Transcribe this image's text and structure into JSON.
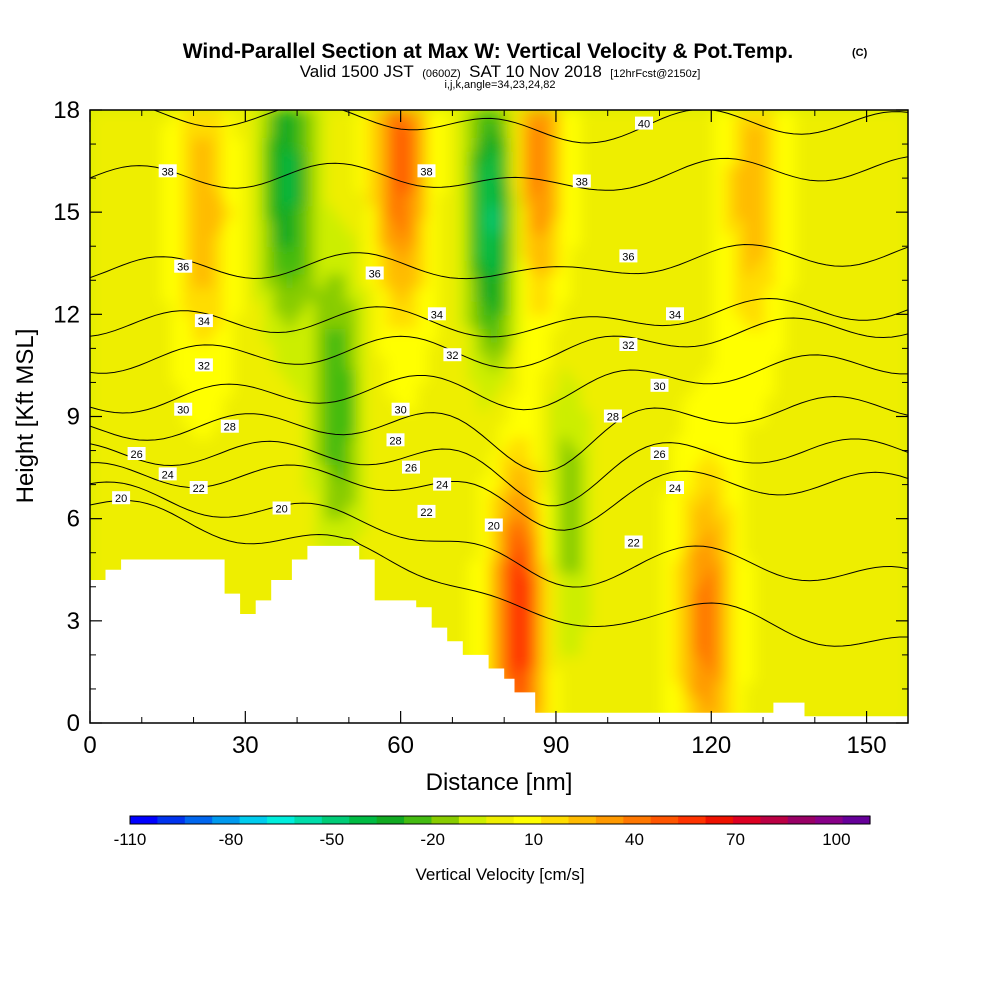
{
  "header": {
    "title": "Wind-Parallel Section at Max W: Vertical Velocity & Pot.Temp.",
    "copyright": "(C)",
    "valid_prefix": "Valid 1500 JST",
    "valid_utc": "(0600Z)",
    "valid_date": "SAT 10 Nov 2018",
    "forecast": "[12hrFcst@2150z]",
    "indices": "i,j,k,angle=34,23,24,82"
  },
  "chart_data": {
    "type": "heatmap",
    "title": "Wind-Parallel Section at Max W: Vertical Velocity & Pot.Temp.",
    "xlabel": "Distance [nm]",
    "ylabel": "Height [Kft MSL]",
    "xlim": [
      0,
      158
    ],
    "ylim": [
      0,
      18
    ],
    "x_ticks": [
      0,
      30,
      60,
      90,
      120,
      150
    ],
    "y_ticks": [
      0,
      3,
      6,
      9,
      12,
      15,
      18
    ],
    "x_tick_labels": [
      "0",
      "30",
      "60",
      "90",
      "120",
      "150"
    ],
    "y_tick_labels": [
      "0",
      "3",
      "6",
      "9",
      "12",
      "15",
      "18"
    ],
    "terrain_kft": [
      {
        "x": 0,
        "h": 4.2
      },
      {
        "x": 3,
        "h": 4.5
      },
      {
        "x": 6,
        "h": 4.8
      },
      {
        "x": 26,
        "h": 3.8
      },
      {
        "x": 29,
        "h": 3.2
      },
      {
        "x": 32,
        "h": 3.6
      },
      {
        "x": 35,
        "h": 4.2
      },
      {
        "x": 39,
        "h": 4.8
      },
      {
        "x": 42,
        "h": 5.2
      },
      {
        "x": 52,
        "h": 4.8
      },
      {
        "x": 55,
        "h": 3.6
      },
      {
        "x": 63,
        "h": 3.4
      },
      {
        "x": 66,
        "h": 2.8
      },
      {
        "x": 69,
        "h": 2.4
      },
      {
        "x": 72,
        "h": 2.0
      },
      {
        "x": 77,
        "h": 1.6
      },
      {
        "x": 80,
        "h": 1.3
      },
      {
        "x": 82,
        "h": 0.9
      },
      {
        "x": 86,
        "h": 0.3
      },
      {
        "x": 132,
        "h": 0.6
      },
      {
        "x": 138,
        "h": 0.2
      }
    ],
    "vertical_velocity_cores": [
      {
        "x": 83,
        "z": 3.2,
        "w": 60
      },
      {
        "x": 60,
        "z": 16.5,
        "w": 45
      },
      {
        "x": 86,
        "z": 16.5,
        "w": 40
      },
      {
        "x": 22,
        "z": 15.0,
        "w": 25
      },
      {
        "x": 119,
        "z": 3.0,
        "w": 40
      },
      {
        "x": 128,
        "z": 15.5,
        "w": 25
      },
      {
        "x": 38,
        "z": 16.0,
        "w": -40
      },
      {
        "x": 78,
        "z": 15.0,
        "w": -50
      },
      {
        "x": 48,
        "z": 9.5,
        "w": -30
      },
      {
        "x": 92,
        "z": 6.0,
        "w": -20
      }
    ],
    "theta_isentropes": [
      {
        "label": "20",
        "z_left": 6.4,
        "z_right": 2.2
      },
      {
        "label": "22",
        "z_left": 6.8,
        "z_right": 4.2
      },
      {
        "label": "24",
        "z_left": 7.3,
        "z_right": 7.0
      },
      {
        "label": "26",
        "z_left": 7.9,
        "z_right": 8.0
      },
      {
        "label": "28",
        "z_left": 8.6,
        "z_right": 9.3
      },
      {
        "label": "30",
        "z_left": 9.4,
        "z_right": 10.6
      },
      {
        "label": "32",
        "z_left": 10.6,
        "z_right": 11.7
      },
      {
        "label": "34",
        "z_left": 11.7,
        "z_right": 12.2
      },
      {
        "label": "36",
        "z_left": 13.3,
        "z_right": 13.8
      },
      {
        "label": "38",
        "z_left": 16.0,
        "z_right": 16.3
      },
      {
        "label": "40",
        "z_left": 17.9,
        "z_right": 17.6
      }
    ],
    "contour_labels": [
      {
        "text": "20",
        "x": 6,
        "z": 6.6
      },
      {
        "text": "22",
        "x": 21,
        "z": 6.9
      },
      {
        "text": "24",
        "x": 15,
        "z": 7.3
      },
      {
        "text": "26",
        "x": 9,
        "z": 7.9
      },
      {
        "text": "28",
        "x": 27,
        "z": 8.7
      },
      {
        "text": "30",
        "x": 18,
        "z": 9.2
      },
      {
        "text": "32",
        "x": 22,
        "z": 10.5
      },
      {
        "text": "34",
        "x": 22,
        "z": 11.8
      },
      {
        "text": "36",
        "x": 18,
        "z": 13.4
      },
      {
        "text": "38",
        "x": 15,
        "z": 16.2
      },
      {
        "text": "20",
        "x": 37,
        "z": 6.3
      },
      {
        "text": "30",
        "x": 60,
        "z": 9.2
      },
      {
        "text": "28",
        "x": 59,
        "z": 8.3
      },
      {
        "text": "26",
        "x": 62,
        "z": 7.5
      },
      {
        "text": "24",
        "x": 68,
        "z": 7.0
      },
      {
        "text": "22",
        "x": 65,
        "z": 6.2
      },
      {
        "text": "36",
        "x": 55,
        "z": 13.2
      },
      {
        "text": "34",
        "x": 67,
        "z": 12.0
      },
      {
        "text": "32",
        "x": 70,
        "z": 10.8
      },
      {
        "text": "38",
        "x": 65,
        "z": 16.2
      },
      {
        "text": "20",
        "x": 78,
        "z": 5.8
      },
      {
        "text": "38",
        "x": 95,
        "z": 15.9
      },
      {
        "text": "40",
        "x": 107,
        "z": 17.6
      },
      {
        "text": "36",
        "x": 104,
        "z": 13.7
      },
      {
        "text": "34",
        "x": 113,
        "z": 12.0
      },
      {
        "text": "32",
        "x": 104,
        "z": 11.1
      },
      {
        "text": "30",
        "x": 110,
        "z": 9.9
      },
      {
        "text": "28",
        "x": 101,
        "z": 9.0
      },
      {
        "text": "26",
        "x": 110,
        "z": 7.9
      },
      {
        "text": "24",
        "x": 113,
        "z": 6.9
      },
      {
        "text": "22",
        "x": 105,
        "z": 5.3
      }
    ],
    "colorbar": {
      "label": "Vertical Velocity [cm/s]",
      "min": -110,
      "max": 110,
      "step": 10,
      "tick_labels": [
        "-110",
        "-80",
        "-50",
        "-20",
        "10",
        "40",
        "70",
        "100"
      ],
      "colors": [
        "#0000ff",
        "#0033ee",
        "#0066ee",
        "#0099ee",
        "#00ccee",
        "#00eedd",
        "#00ddaa",
        "#00cc77",
        "#00bb44",
        "#11aa22",
        "#44bb11",
        "#88cc00",
        "#ccee00",
        "#eeee00",
        "#ffff00",
        "#ffdd00",
        "#ffbb00",
        "#ff9900",
        "#ff7700",
        "#ff5500",
        "#ff3300",
        "#ee1100",
        "#dd0022",
        "#bb0044",
        "#990066",
        "#880088",
        "#660099"
      ]
    }
  }
}
